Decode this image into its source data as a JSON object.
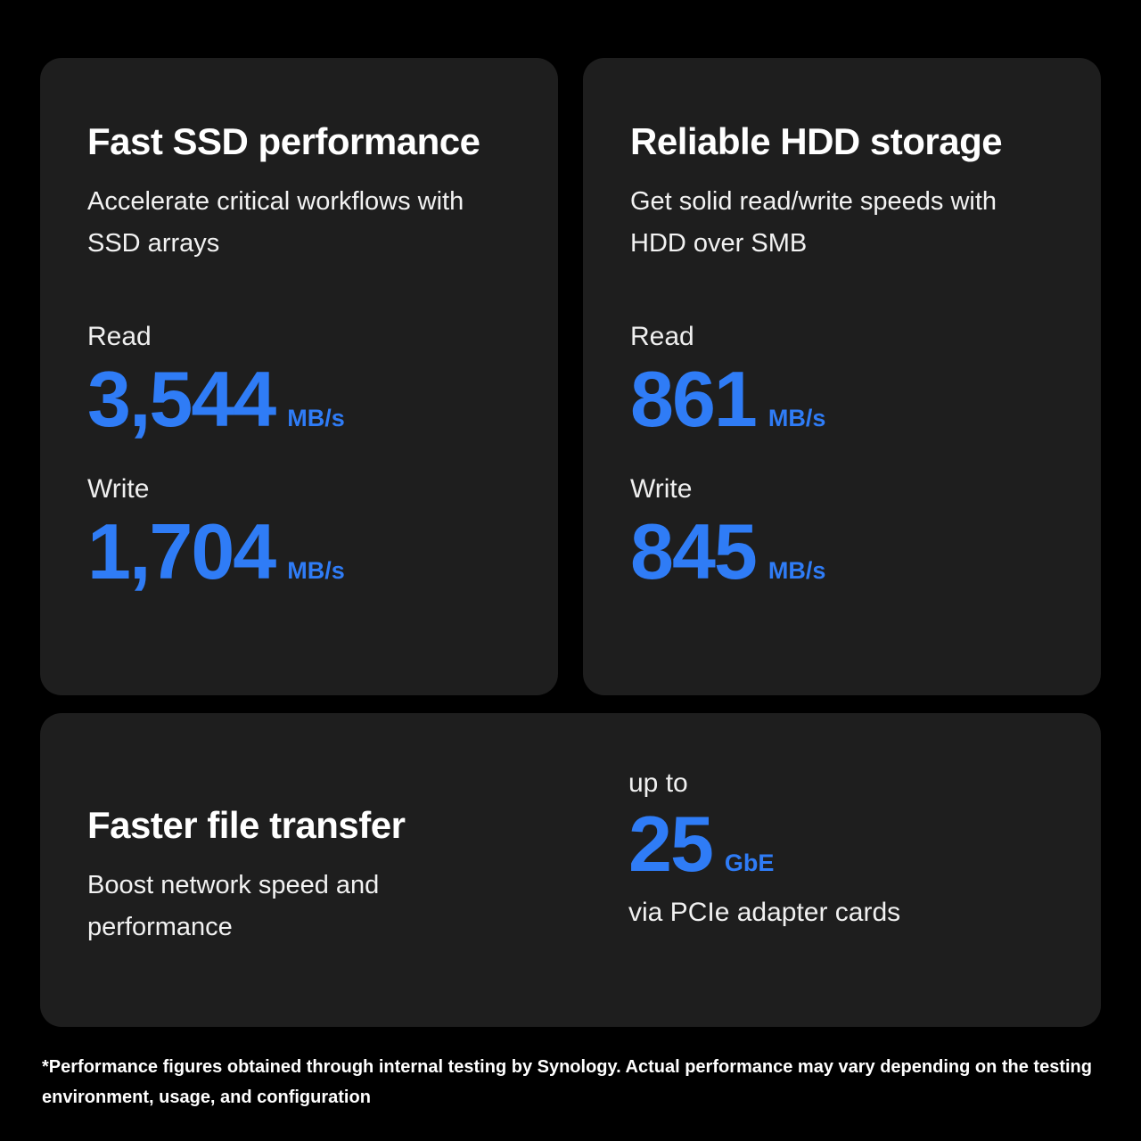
{
  "colors": {
    "accent": "#2f7cf6",
    "background": "#000000",
    "card": "#1e1e1e"
  },
  "cards": {
    "ssd": {
      "title": "Fast SSD performance",
      "subtitle": "Accelerate critical workflows with SSD arrays",
      "stats": [
        {
          "label": "Read",
          "value": "3,544",
          "unit": "MB/s"
        },
        {
          "label": "Write",
          "value": "1,704",
          "unit": "MB/s"
        }
      ]
    },
    "hdd": {
      "title": "Reliable HDD storage",
      "subtitle": "Get solid read/write speeds with HDD over SMB",
      "stats": [
        {
          "label": "Read",
          "value": "861",
          "unit": "MB/s"
        },
        {
          "label": "Write",
          "value": "845",
          "unit": "MB/s"
        }
      ]
    },
    "transfer": {
      "title": "Faster file transfer",
      "subtitle": "Boost network speed and performance",
      "prefix": "up to",
      "value": "25",
      "unit": "GbE",
      "note": "via PCIe adapter cards"
    }
  },
  "footnote": "*Performance figures obtained through internal testing by Synology. Actual performance may vary depending on the testing environment, usage, and configuration"
}
